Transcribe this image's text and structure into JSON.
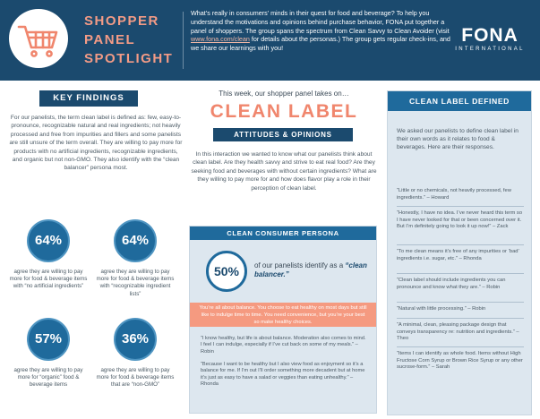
{
  "header": {
    "title_lines": [
      "SHOPPER",
      "PANEL",
      "SPOTLIGHT"
    ],
    "intro_before_link": "What’s really in consumers’ minds in their quest for food and beverage? To help you understand the motivations and opinions behind purchase behavior, FONA put together a panel of shoppers. The group spans the spectrum from Clean Savvy to Clean Avoider (visit ",
    "intro_link": "www.fona.com/clean",
    "intro_after_link": " for details about the personas.) The group gets regular check-ins, and we share our learnings with you!",
    "logo_word": "FONA",
    "logo_sub": "INTERNATIONAL"
  },
  "key_findings": {
    "heading": "KEY FINDINGS",
    "body": "For our panelists, the term clean label is defined as: few, easy-to-pronounce, recognizable natural and real ingredients; not heavily processed and free from impurities and fillers and some panelists are still unsure of the term overall. They are willing to pay more for products with no artificial ingredients, recognizable ingredients, and organic but not non-GMO. They also identify with the “clean balancer” persona most.",
    "stats": [
      {
        "value": "64%",
        "text": "agree they are willing to pay more for food & beverage items with “no artificial ingredients”"
      },
      {
        "value": "64%",
        "text": "agree they are willing to pay more for food & beverage items with “recognizable ingredient lists”"
      },
      {
        "value": "57%",
        "text": "agree they are willing to pay more for “organic” food & beverage items"
      },
      {
        "value": "36%",
        "text": "agree they are willing to pay more for food & beverage items that are “non-GMO”"
      }
    ]
  },
  "middle": {
    "teaser": "This week, our shopper panel takes on…",
    "title": "CLEAN LABEL",
    "subheading": "ATTITUDES & OPINIONS",
    "body": "In this interaction we wanted to know what our panelists think about clean label. Are they health savvy and strive to eat real food? Are they seeking food and beverages with without certain ingredients? What are they willing to pay more for and how does flavor play a role in their perception of clean label."
  },
  "persona": {
    "heading": "CLEAN CONSUMER PERSONA",
    "value": "50%",
    "label_prefix": "of our panelists identify as a ",
    "label_emphasis": "“clean balancer.”",
    "banner": "You’re all about balance. You choose to eat healthy on most days but still like to indulge time to time. You need convenience, but you’re your best so make healthy choices.",
    "quotes": [
      "“I know healthy, but life is about balance. Moderation also comes to mind. I feel I can indulge, especially if I’ve cut back on some of my meals.” – Robin",
      "“Because I want to be healthy but I also view food as enjoyment so it’s a balance for me. If I’m out I’ll order something more decadent but at home it’s just as easy to have a salad or veggies than eating unhealthy.” – Rhonda"
    ]
  },
  "defined": {
    "heading": "CLEAN LABEL DEFINED",
    "intro": "We asked our panelists to define clean label in their own words as it relates to food & beverages. Here are their responses.",
    "quotes": [
      "“Little or no chemicals, not heavily processed, few ingredients.” – Howard",
      "“Honestly, I have no idea. I’ve never heard this term so I have never looked for that or been concerned over it. But I’m definitely going to look it up now!” – Zack",
      "“To me clean means it’s free of any impurities or ‘bad’ ingredients i.e. sugar, etc.” – Rhonda",
      "“Clean label should include ingredients you can pronounce and know what they are.” – Robin",
      "“Natural with little processing.” – Robin",
      "“A minimal, clean, pleasing package design that conveys transparency re: nutrition and ingredients.” – Theo",
      "“Items I can identify as whole food. Items without High Fructose Corn Syrup or Brown Rice Syrup or any other sucrose-form.” – Sarah"
    ]
  },
  "colors": {
    "navy": "#1b4a6e",
    "blue": "#1f6a9c",
    "coral": "#f0866d",
    "panel": "#dde7ef"
  }
}
